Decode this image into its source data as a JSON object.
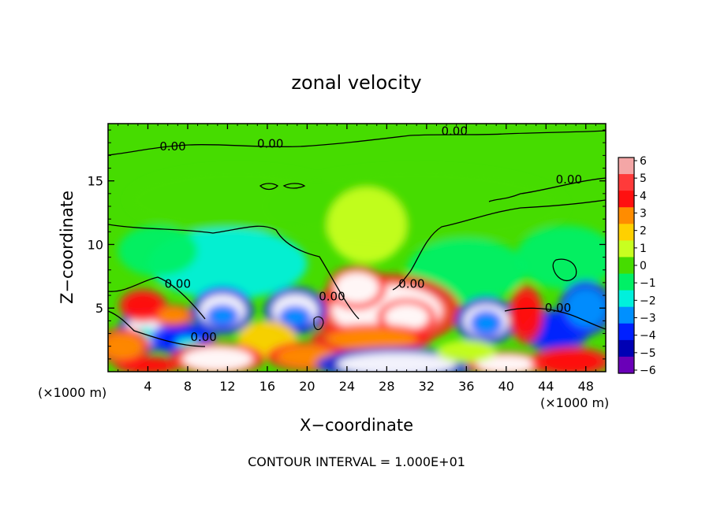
{
  "chart_data": {
    "type": "heatmap",
    "title": "zonal velocity",
    "xlabel": "X−coordinate",
    "ylabel": "Z−coordinate",
    "x_unit_left": "(×1000 m)",
    "x_unit_right": "(×1000 m)",
    "footer": "CONTOUR INTERVAL = 1.000E+01",
    "xlim": [
      0,
      50
    ],
    "ylim": [
      0,
      19.5
    ],
    "x_ticks": [
      4,
      8,
      12,
      16,
      20,
      24,
      28,
      32,
      36,
      40,
      44,
      48
    ],
    "y_ticks": [
      5,
      10,
      15
    ],
    "colorbar": {
      "range": [
        -6,
        6
      ],
      "labels": [
        "6",
        "5",
        "4",
        "3",
        "2",
        "1",
        "0",
        "−1",
        "−2",
        "−3",
        "−4",
        "−5",
        "−6"
      ],
      "colors": [
        "#f4a6a6",
        "#ff3a3a",
        "#ff1010",
        "#ff8c00",
        "#ffd000",
        "#c8ff20",
        "#46dc00",
        "#00f066",
        "#00f0dc",
        "#0090ff",
        "#0020ff",
        "#0000b4",
        "#6a00b8"
      ]
    },
    "contour_labels": [
      {
        "text": "0.00",
        "x": 6.5,
        "y": 17.4
      },
      {
        "text": "0.00",
        "x": 16.3,
        "y": 17.6
      },
      {
        "text": "0.00",
        "x": 34.8,
        "y": 18.6
      },
      {
        "text": "0.00",
        "x": 46.3,
        "y": 14.8
      },
      {
        "text": "0.00",
        "x": 30.5,
        "y": 6.6
      },
      {
        "text": "0.00",
        "x": 7.0,
        "y": 6.6
      },
      {
        "text": "0.00",
        "x": 22.5,
        "y": 5.6
      },
      {
        "text": "0.00",
        "x": 9.6,
        "y": 2.4
      },
      {
        "text": "0.00",
        "x": 45.2,
        "y": 4.7
      }
    ],
    "blobs": [
      {
        "x": 13,
        "y": 13.5,
        "rx": 11,
        "ry": 2.5,
        "v": -0.4
      },
      {
        "x": 31,
        "y": 13,
        "rx": 15,
        "ry": 3,
        "v": -0.3
      },
      {
        "x": 26,
        "y": 11.5,
        "rx": 4,
        "ry": 3,
        "v": 0.6
      },
      {
        "x": 12,
        "y": 8.5,
        "rx": 8,
        "ry": 2.8,
        "v": -1.5
      },
      {
        "x": 36,
        "y": 8,
        "rx": 6,
        "ry": 2.5,
        "v": -1.3
      },
      {
        "x": 46,
        "y": 9,
        "rx": 5,
        "ry": 2.5,
        "v": -1.2
      },
      {
        "x": 5,
        "y": 9.5,
        "rx": 4,
        "ry": 2,
        "v": -0.8
      },
      {
        "x": 28,
        "y": 4.8,
        "rx": 5.5,
        "ry": 2.0,
        "v": 4.5
      },
      {
        "x": 30,
        "y": 4.3,
        "rx": 2.2,
        "ry": 1.0,
        "v": 4.5
      },
      {
        "x": 25,
        "y": 6.6,
        "rx": 2.2,
        "ry": 1.2,
        "v": 4.5
      },
      {
        "x": 26.5,
        "y": 2.6,
        "rx": 4.5,
        "ry": 0.8,
        "v": 3
      },
      {
        "x": 11.5,
        "y": 4.8,
        "rx": 2.3,
        "ry": 1.3,
        "v": -4.5
      },
      {
        "x": 11.5,
        "y": 4.4,
        "rx": 1.2,
        "ry": 0.6,
        "v": -3
      },
      {
        "x": 18.8,
        "y": 4.8,
        "rx": 2.3,
        "ry": 1.3,
        "v": -4.5
      },
      {
        "x": 18.8,
        "y": 4.3,
        "rx": 1.2,
        "ry": 0.6,
        "v": -3
      },
      {
        "x": 38,
        "y": 4.0,
        "rx": 2.3,
        "ry": 1.3,
        "v": -4.5
      },
      {
        "x": 38,
        "y": 3.8,
        "rx": 1.2,
        "ry": 0.7,
        "v": -3
      },
      {
        "x": 4,
        "y": 3.3,
        "rx": 2.2,
        "ry": 1.2,
        "v": -4.5
      },
      {
        "x": 3.8,
        "y": 3.0,
        "rx": 0.8,
        "ry": 0.5,
        "v": -2
      },
      {
        "x": 7.5,
        "y": 2.6,
        "rx": 2.4,
        "ry": 0.9,
        "v": -3.5
      },
      {
        "x": 8,
        "y": 2.3,
        "rx": 1.2,
        "ry": 0.4,
        "v": -2
      },
      {
        "x": 45,
        "y": 3.2,
        "rx": 2.5,
        "ry": 1.2,
        "v": -4
      },
      {
        "x": 48,
        "y": 5,
        "rx": 2,
        "ry": 1.5,
        "v": -3
      },
      {
        "x": 3.5,
        "y": 5.2,
        "rx": 1.8,
        "ry": 0.9,
        "v": 4
      },
      {
        "x": 6.5,
        "y": 4.4,
        "rx": 1.5,
        "ry": 0.6,
        "v": 3
      },
      {
        "x": 42,
        "y": 4.5,
        "rx": 1.3,
        "ry": 1.6,
        "v": 4
      },
      {
        "x": 16,
        "y": 2.5,
        "rx": 3,
        "ry": 1.5,
        "v": 2
      },
      {
        "x": 11,
        "y": 1.0,
        "rx": 3.5,
        "ry": 0.9,
        "v": 4.5
      },
      {
        "x": 4,
        "y": 0.5,
        "rx": 2.5,
        "ry": 0.5,
        "v": 4
      },
      {
        "x": 20,
        "y": 1.2,
        "rx": 3,
        "ry": 0.8,
        "v": 3
      },
      {
        "x": 29,
        "y": 0.6,
        "rx": 6,
        "ry": 0.9,
        "v": -4.5
      },
      {
        "x": 40,
        "y": 0.6,
        "rx": 3,
        "ry": 0.7,
        "v": 4.5
      },
      {
        "x": 46.5,
        "y": 0.8,
        "rx": 3,
        "ry": 0.8,
        "v": 4
      },
      {
        "x": 36,
        "y": 1.6,
        "rx": 3,
        "ry": 0.9,
        "v": 1.5
      },
      {
        "x": 1.5,
        "y": 2.0,
        "rx": 2,
        "ry": 1,
        "v": 3
      }
    ]
  }
}
